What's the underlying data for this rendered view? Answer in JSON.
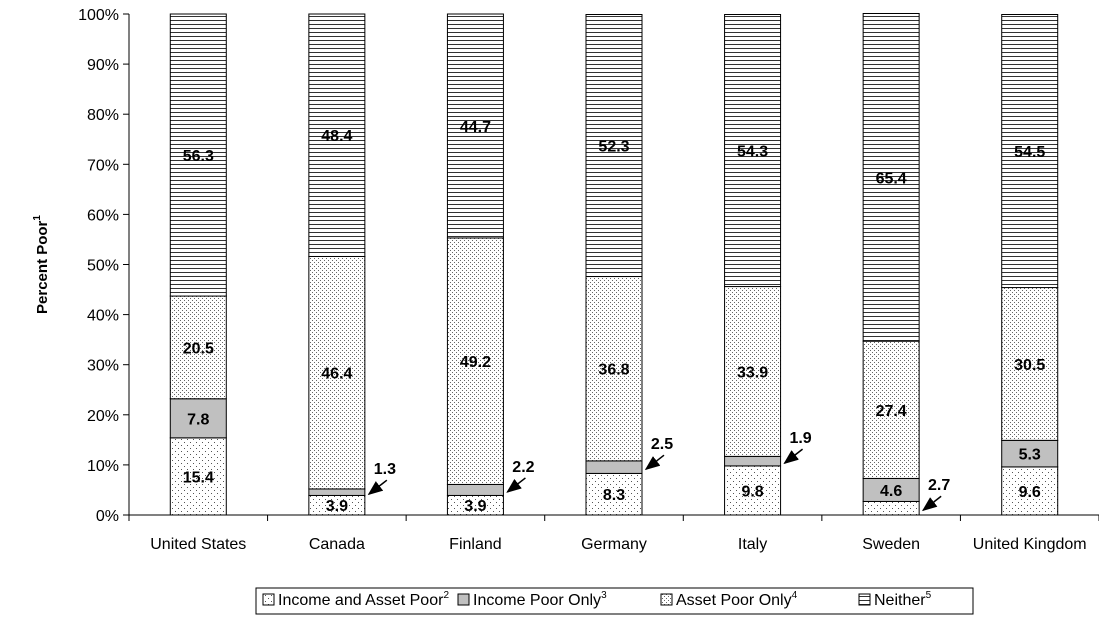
{
  "chart_data": {
    "type": "bar",
    "stacked": true,
    "ylabel": "Percent Poor",
    "ylabel_sup": "1",
    "ylim": [
      0,
      100
    ],
    "yticks": [
      "0%",
      "10%",
      "20%",
      "30%",
      "40%",
      "50%",
      "60%",
      "70%",
      "80%",
      "90%",
      "100%"
    ],
    "categories": [
      "United States",
      "Canada",
      "Finland",
      "Germany",
      "Italy",
      "Sweden",
      "United Kingdom"
    ],
    "series": [
      {
        "name": "Income and Asset Poor",
        "sup": "2",
        "pattern": "dots-sparse",
        "values": [
          15.4,
          3.9,
          3.9,
          8.3,
          9.8,
          2.7,
          9.6
        ]
      },
      {
        "name": "Income Poor Only",
        "sup": "3",
        "pattern": "gray",
        "values": [
          7.8,
          1.3,
          2.2,
          2.5,
          1.9,
          4.6,
          5.3
        ]
      },
      {
        "name": "Asset Poor Only",
        "sup": "4",
        "pattern": "dots-dense",
        "values": [
          20.5,
          46.4,
          49.2,
          36.8,
          33.9,
          27.4,
          30.5
        ]
      },
      {
        "name": "Neither",
        "sup": "5",
        "pattern": "hlines",
        "values": [
          56.3,
          48.4,
          44.7,
          52.3,
          54.3,
          65.4,
          54.5
        ]
      }
    ],
    "labels": [
      [
        "15.4",
        "7.8",
        "20.5",
        "56.3"
      ],
      [
        "3.9",
        "1.3",
        "46.4",
        "48.4"
      ],
      [
        "3.9",
        "2.2",
        "49.2",
        "44.7"
      ],
      [
        "8.3",
        "2.5",
        "36.8",
        "52.3"
      ],
      [
        "9.8",
        "1.9",
        "33.9",
        "54.3"
      ],
      [
        "2.7",
        "4.6",
        "27.4",
        "65.4"
      ],
      [
        "9.6",
        "5.3",
        "30.5",
        "54.5"
      ]
    ],
    "legend_position": "bottom",
    "grid": false
  }
}
